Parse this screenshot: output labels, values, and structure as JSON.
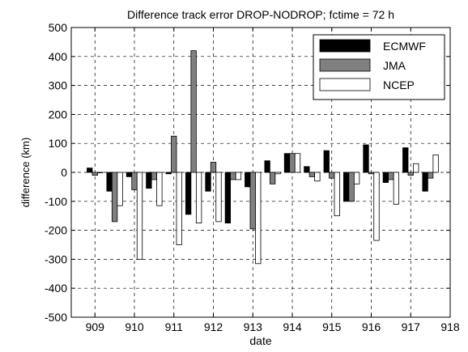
{
  "chart_data": {
    "type": "bar",
    "title": "Difference track error DROP-NODROP; fctime = 72 h",
    "xlabel": "date",
    "ylabel": "difference (km)",
    "xlim": [
      908.4,
      918
    ],
    "ylim": [
      -500,
      500
    ],
    "xticks": [
      909,
      910,
      911,
      912,
      913,
      914,
      915,
      916,
      917,
      918
    ],
    "yticks": [
      -500,
      -400,
      -300,
      -200,
      -100,
      0,
      100,
      200,
      300,
      400,
      500
    ],
    "grid": true,
    "grid_style": "dashed",
    "legend_position": "top-right",
    "x": [
      909.0,
      909.5,
      910.0,
      910.5,
      911.0,
      911.5,
      912.0,
      912.5,
      913.0,
      913.5,
      914.0,
      914.5,
      915.0,
      915.5,
      916.0,
      916.5,
      917.0,
      917.5
    ],
    "series": [
      {
        "name": "ECMWF",
        "color": "#000000",
        "values": [
          15,
          -65,
          -15,
          -55,
          -5,
          -145,
          -65,
          -175,
          -50,
          40,
          65,
          20,
          75,
          -100,
          95,
          -35,
          85,
          -65
        ]
      },
      {
        "name": "JMA",
        "color": "#808080",
        "values": [
          -10,
          -170,
          -60,
          -25,
          125,
          420,
          35,
          -25,
          -195,
          -40,
          65,
          -15,
          -20,
          -100,
          -5,
          -25,
          -10,
          -20
        ]
      },
      {
        "name": "NCEP",
        "color": "#ffffff",
        "values": [
          0,
          -115,
          -300,
          -115,
          -250,
          -175,
          -170,
          -25,
          -315,
          -5,
          65,
          -30,
          -150,
          -40,
          -235,
          -110,
          30,
          60
        ]
      }
    ]
  }
}
